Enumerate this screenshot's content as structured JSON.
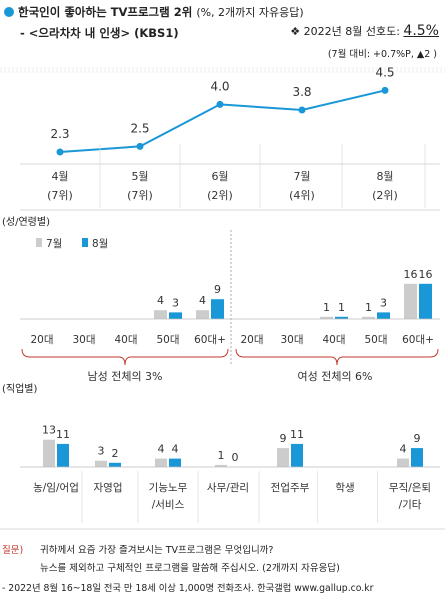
{
  "header": {
    "title": "한국인이 좋아하는 TV프로그램 2위",
    "title_note": "(%, 2개까지 자유응답)",
    "subtitle": "- <으라차차 내 인생> (KBS1)",
    "pref_prefix": "❖  2022년 8월 선호도: ",
    "pref_value": "4.5%",
    "change_note": "(7월 대비: +0.7%P, ▲2 )"
  },
  "colors": {
    "accent": "#1a97d6",
    "grey": "#cccccc",
    "line": "#1a97d6"
  },
  "trend": {
    "type": "line",
    "months": [
      "4월",
      "5월",
      "6월",
      "7월",
      "8월"
    ],
    "ranks": [
      "(7위)",
      "(7위)",
      "(2위)",
      "(4위)",
      "(2위)"
    ],
    "values": [
      2.3,
      2.5,
      4.0,
      3.8,
      4.5
    ],
    "value_labels": [
      "2.3",
      "2.5",
      "4.0",
      "3.8",
      "4.5"
    ]
  },
  "chart_data": [
    {
      "type": "bar",
      "section_label": "(성/연령별)",
      "legend": [
        "7월",
        "8월"
      ],
      "categories": [
        "20대",
        "30대",
        "40대",
        "50대",
        "60대+",
        "20대",
        "30대",
        "40대",
        "50대",
        "60대+"
      ],
      "series": [
        {
          "name": "7월",
          "values": [
            0,
            0,
            0,
            4,
            4,
            0,
            0,
            1,
            1,
            16
          ]
        },
        {
          "name": "8월",
          "values": [
            0,
            0,
            0,
            3,
            9,
            0,
            0,
            1,
            3,
            16
          ]
        }
      ],
      "value_labels_7": [
        "",
        "",
        "",
        "4",
        "4",
        "",
        "",
        "1",
        "1",
        "16"
      ],
      "value_labels_8": [
        "",
        "",
        "",
        "3",
        "9",
        "",
        "",
        "1",
        "3",
        "16"
      ],
      "group_labels": [
        "남성  전체의 3%",
        "여성  전체의 6%"
      ]
    },
    {
      "type": "bar",
      "section_label": "(직업별)",
      "categories": [
        "농/임/어업",
        "자영업",
        "기능노무\n/서비스",
        "사무/관리",
        "전업주부",
        "학생",
        "무직/은퇴\n/기타"
      ],
      "series": [
        {
          "name": "7월",
          "values": [
            13,
            3,
            4,
            1,
            9,
            0,
            4
          ]
        },
        {
          "name": "8월",
          "values": [
            11,
            2,
            4,
            0,
            11,
            0,
            9
          ]
        }
      ],
      "value_labels_7": [
        "13",
        "3",
        "4",
        "1",
        "9",
        "",
        "4"
      ],
      "value_labels_8": [
        "11",
        "2",
        "4",
        "0",
        "11",
        "",
        "9"
      ]
    }
  ],
  "footer": {
    "question_label": "질문)",
    "question_1": "귀하께서 요즘 가장 즐겨보시는 TV프로그램은 무엇입니까?",
    "question_2": "뉴스를 제외하고 구체적인 프로그램을 말씀해 주십시오. (2개까지 자유응답)",
    "source": "- 2022년 8월 16~18일 전국 만 18세 이상 1,000명 전화조사. 한국갤럽 www.gallup.co.kr"
  }
}
